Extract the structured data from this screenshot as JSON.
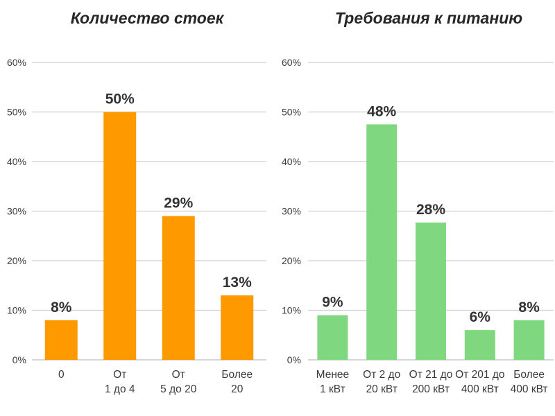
{
  "chart_data": [
    {
      "type": "bar",
      "title": "Количество стоек",
      "categories": [
        [
          "0"
        ],
        [
          "От",
          "1 до 4"
        ],
        [
          "От",
          "5 до 20"
        ],
        [
          "Более",
          "20"
        ]
      ],
      "values": [
        8,
        50,
        29,
        13
      ],
      "data_labels": [
        "8%",
        "50%",
        "29%",
        "13%"
      ],
      "ylim": [
        0,
        60
      ],
      "yticks": [
        "0%",
        "10%",
        "20%",
        "30%",
        "40%",
        "50%",
        "60%"
      ],
      "grid": true,
      "color": "#FF9900"
    },
    {
      "type": "bar",
      "title": "Требования к питанию",
      "categories": [
        [
          "Менее",
          "1 кВт"
        ],
        [
          "От 2 до",
          "20 кВт"
        ],
        [
          "От 21 до",
          "200 кВт"
        ],
        [
          "От 201 до",
          "400 кВт"
        ],
        [
          "Более",
          "400 кВт"
        ]
      ],
      "values": [
        9,
        47.5,
        27.7,
        6,
        8
      ],
      "data_labels": [
        "9%",
        "48%",
        "28%",
        "6%",
        "8%"
      ],
      "ylim": [
        0,
        60
      ],
      "yticks": [
        "0%",
        "10%",
        "20%",
        "30%",
        "40%",
        "50%",
        "60%"
      ],
      "grid": true,
      "color": "#7FD87F"
    }
  ]
}
